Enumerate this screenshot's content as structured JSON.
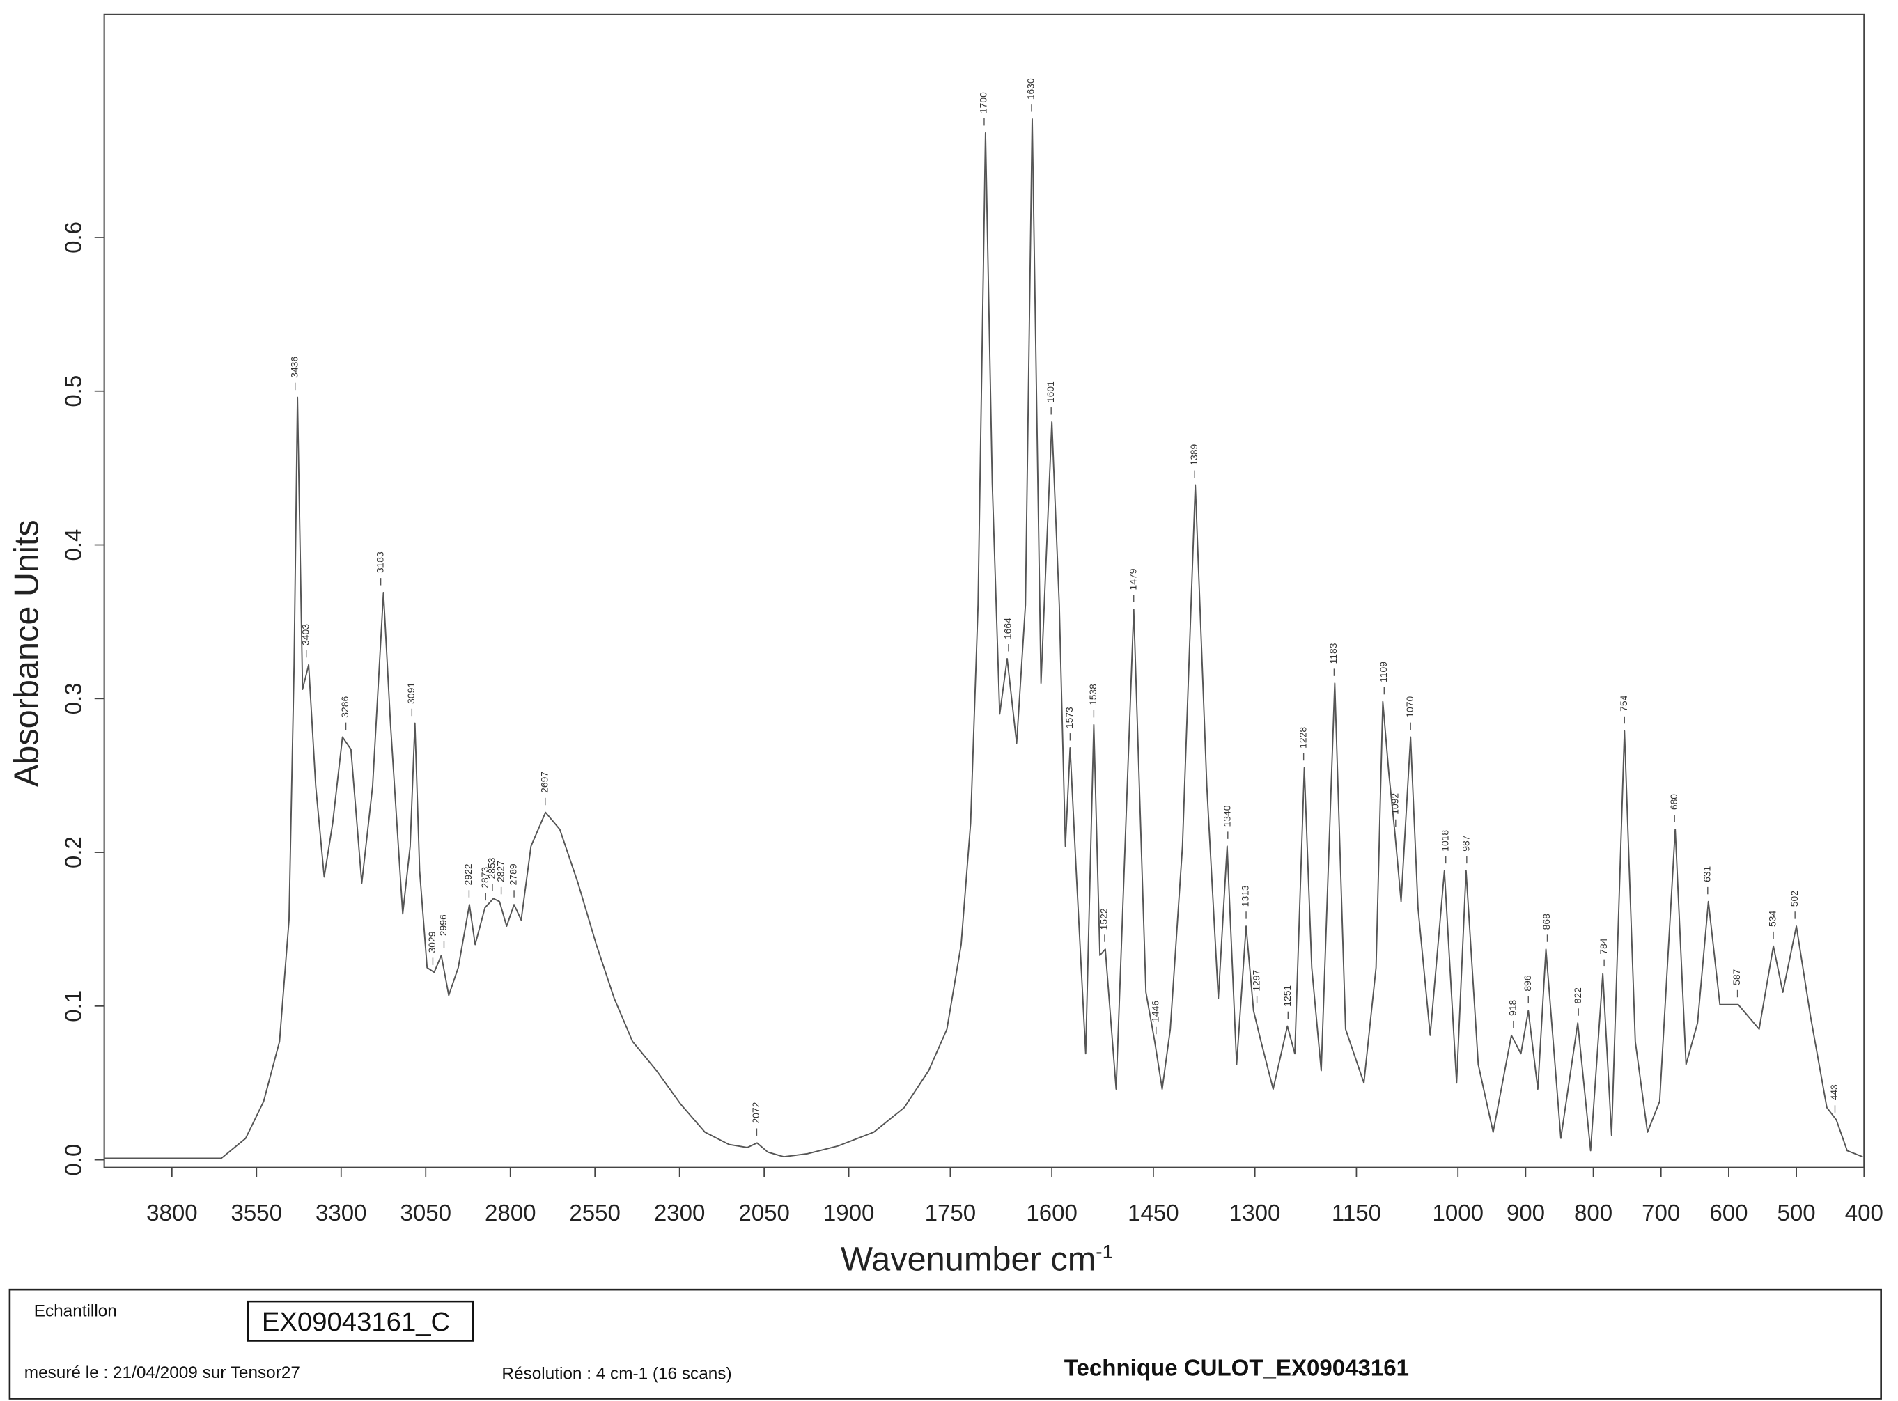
{
  "chart_data": {
    "type": "line",
    "xlabel": "Wavenumber cm",
    "xlabel_sup": "-1",
    "ylabel": "Absorbance Units",
    "xlim": [
      4000,
      400
    ],
    "x_break": 2000,
    "x_expansion_below_break": 2,
    "ylim": [
      -0.005,
      0.745
    ],
    "xticks": [
      3800,
      3550,
      3300,
      3050,
      2800,
      2550,
      2300,
      2050,
      1900,
      1750,
      1600,
      1450,
      1300,
      1150,
      1000,
      900,
      800,
      700,
      600,
      500,
      400
    ],
    "yticks": [
      {
        "value": 0,
        "label": "0.0"
      },
      0.1,
      0.2,
      0.3,
      0.4,
      0.5,
      0.6
    ],
    "series": [
      {
        "color": "#555555",
        "x": [
          4000,
          3654,
          3582,
          3529,
          3482,
          3454,
          3439,
          3429,
          3414,
          3396,
          3375,
          3350,
          3325,
          3296,
          3271,
          3239,
          3207,
          3175,
          3154,
          3118,
          3096,
          3082,
          3068,
          3046,
          3025,
          3004,
          2982,
          2954,
          2921,
          2904,
          2875,
          2850,
          2832,
          2811,
          2789,
          2768,
          2739,
          2696,
          2654,
          2600,
          2546,
          2493,
          2439,
          2368,
          2296,
          2225,
          2154,
          2100,
          2071,
          2039,
          1996,
          1961,
          1916,
          1863,
          1818,
          1782,
          1755,
          1734,
          1720,
          1709,
          1698,
          1688,
          1677,
          1666,
          1652,
          1639,
          1629,
          1616,
          1600,
          1589,
          1580,
          1573,
          1564,
          1550,
          1538,
          1529,
          1521,
          1505,
          1479,
          1461,
          1448,
          1437,
          1425,
          1407,
          1388,
          1371,
          1354,
          1341,
          1327,
          1313,
          1302,
          1291,
          1273,
          1252,
          1241,
          1227,
          1216,
          1202,
          1182,
          1166,
          1139,
          1121,
          1111,
          1102,
          1093,
          1084,
          1070,
          1059,
          1041,
          1020,
          1002,
          988,
          970,
          948,
          921,
          907,
          896,
          882,
          870,
          848,
          823,
          804,
          786,
          773,
          754,
          738,
          720,
          702,
          679,
          663,
          646,
          630,
          613,
          586,
          555,
          534,
          520,
          500,
          479,
          455,
          441,
          425,
          402
        ],
        "values": [
          0.001,
          0.001,
          0.014,
          0.038,
          0.077,
          0.156,
          0.322,
          0.496,
          0.306,
          0.322,
          0.243,
          0.184,
          0.219,
          0.275,
          0.267,
          0.18,
          0.243,
          0.369,
          0.283,
          0.16,
          0.204,
          0.284,
          0.188,
          0.125,
          0.122,
          0.133,
          0.107,
          0.125,
          0.166,
          0.14,
          0.164,
          0.17,
          0.168,
          0.152,
          0.166,
          0.156,
          0.204,
          0.226,
          0.215,
          0.18,
          0.14,
          0.105,
          0.077,
          0.058,
          0.036,
          0.018,
          0.01,
          0.008,
          0.011,
          0.005,
          0.002,
          0.004,
          0.009,
          0.018,
          0.034,
          0.058,
          0.085,
          0.14,
          0.219,
          0.361,
          0.668,
          0.44,
          0.29,
          0.326,
          0.271,
          0.361,
          0.677,
          0.31,
          0.48,
          0.361,
          0.204,
          0.268,
          0.188,
          0.069,
          0.283,
          0.133,
          0.137,
          0.046,
          0.358,
          0.109,
          0.077,
          0.046,
          0.085,
          0.204,
          0.439,
          0.243,
          0.105,
          0.204,
          0.062,
          0.152,
          0.097,
          0.077,
          0.046,
          0.087,
          0.069,
          0.255,
          0.125,
          0.058,
          0.31,
          0.085,
          0.05,
          0.125,
          0.298,
          0.251,
          0.212,
          0.168,
          0.275,
          0.164,
          0.081,
          0.188,
          0.05,
          0.188,
          0.062,
          0.018,
          0.081,
          0.069,
          0.097,
          0.046,
          0.137,
          0.014,
          0.089,
          0.006,
          0.121,
          0.016,
          0.279,
          0.077,
          0.018,
          0.038,
          0.215,
          0.062,
          0.089,
          0.168,
          0.101,
          0.101,
          0.085,
          0.139,
          0.109,
          0.152,
          0.093,
          0.034,
          0.026,
          0.006,
          0.002
        ]
      }
    ],
    "peaks": [
      {
        "x": 3436,
        "y": 0.496
      },
      {
        "x": 3403,
        "y": 0.322
      },
      {
        "x": 3286,
        "y": 0.275
      },
      {
        "x": 3183,
        "y": 0.369
      },
      {
        "x": 3091,
        "y": 0.284
      },
      {
        "x": 3029,
        "y": 0.122
      },
      {
        "x": 2996,
        "y": 0.133
      },
      {
        "x": 2922,
        "y": 0.166
      },
      {
        "x": 2873,
        "y": 0.164
      },
      {
        "x": 2853,
        "y": 0.17
      },
      {
        "x": 2827,
        "y": 0.168
      },
      {
        "x": 2789,
        "y": 0.166
      },
      {
        "x": 2697,
        "y": 0.226
      },
      {
        "x": 2072,
        "y": 0.011
      },
      {
        "x": 1700,
        "y": 0.668
      },
      {
        "x": 1664,
        "y": 0.326
      },
      {
        "x": 1630,
        "y": 0.677
      },
      {
        "x": 1601,
        "y": 0.48
      },
      {
        "x": 1573,
        "y": 0.268
      },
      {
        "x": 1538,
        "y": 0.283
      },
      {
        "x": 1522,
        "y": 0.137
      },
      {
        "x": 1479,
        "y": 0.358
      },
      {
        "x": 1446,
        "y": 0.077
      },
      {
        "x": 1389,
        "y": 0.439
      },
      {
        "x": 1340,
        "y": 0.204
      },
      {
        "x": 1313,
        "y": 0.152
      },
      {
        "x": 1297,
        "y": 0.097
      },
      {
        "x": 1251,
        "y": 0.087
      },
      {
        "x": 1228,
        "y": 0.255
      },
      {
        "x": 1183,
        "y": 0.31
      },
      {
        "x": 1109,
        "y": 0.298
      },
      {
        "x": 1092,
        "y": 0.212
      },
      {
        "x": 1070,
        "y": 0.275
      },
      {
        "x": 1018,
        "y": 0.188
      },
      {
        "x": 987,
        "y": 0.188
      },
      {
        "x": 918,
        "y": 0.081
      },
      {
        "x": 896,
        "y": 0.097
      },
      {
        "x": 868,
        "y": 0.137
      },
      {
        "x": 822,
        "y": 0.089
      },
      {
        "x": 784,
        "y": 0.121
      },
      {
        "x": 754,
        "y": 0.279
      },
      {
        "x": 680,
        "y": 0.215
      },
      {
        "x": 631,
        "y": 0.168
      },
      {
        "x": 587,
        "y": 0.101
      },
      {
        "x": 534,
        "y": 0.139
      },
      {
        "x": 502,
        "y": 0.152
      },
      {
        "x": 443,
        "y": 0.026
      }
    ]
  },
  "footer": {
    "sample_label": "Echantillon",
    "sample_id": "EX09043161_C",
    "measured": "mesuré le : 21/04/2009 sur Tensor27",
    "resolution": "Résolution : 4 cm-1 (16 scans)",
    "technique": "Technique CULOT_EX09043161"
  }
}
